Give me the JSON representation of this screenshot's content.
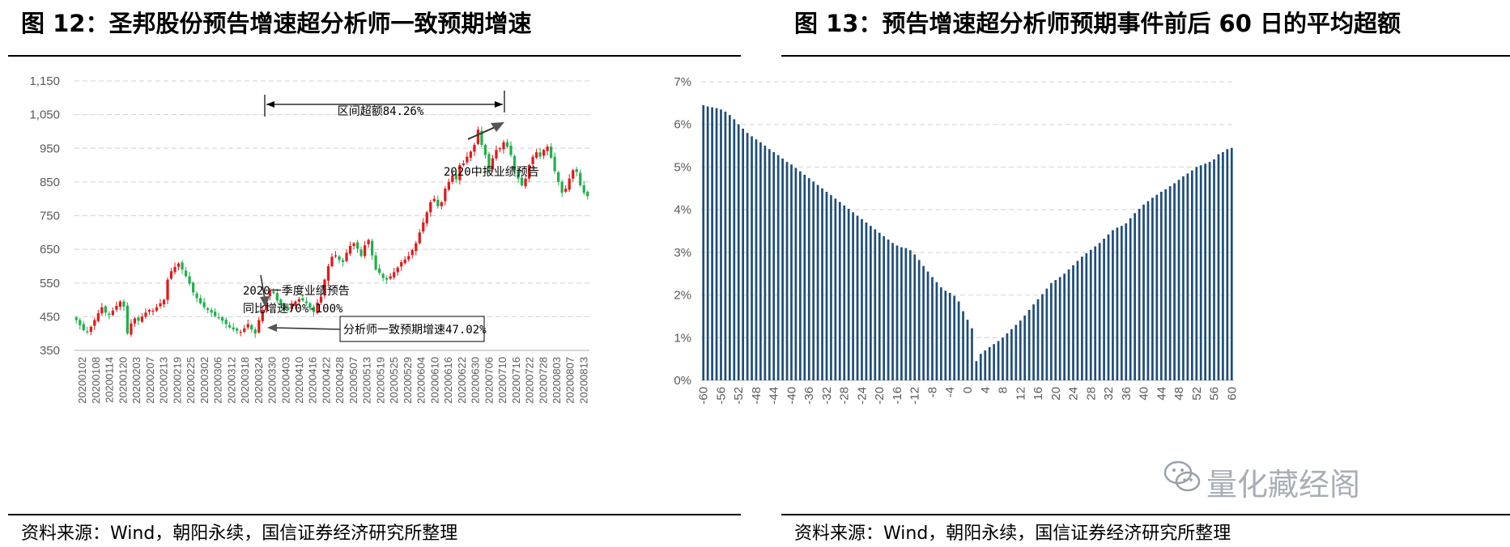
{
  "left": {
    "title": "图 12：圣邦股份预告增速超分析师一致预期增速",
    "source": "资料来源：Wind，朝阳永续，国信证券经济研究所整理"
  },
  "right": {
    "title": "图 13：预告增速超分析师预期事件前后 60 日的平均超额",
    "source": "资料来源：Wind，朝阳永续，国信证券经济研究所整理"
  },
  "watermark": "量化藏经阁",
  "colors": {
    "up": "#e3191b",
    "down": "#1fb14c",
    "bar": "#1f4e79",
    "grid": "#d9d9d9"
  },
  "chart_data": [
    {
      "type": "candlestick",
      "title": "圣邦股份预告增速超分析师一致预期增速",
      "ylim": [
        350,
        1150
      ],
      "yticks": [
        "1,150",
        "1,050",
        "950",
        "850",
        "750",
        "650",
        "550",
        "450",
        "350"
      ],
      "ytick_values": [
        1150,
        1050,
        950,
        850,
        750,
        650,
        550,
        450,
        350
      ],
      "xticks": [
        "20200102",
        "20200108",
        "20200114",
        "20200120",
        "20200203",
        "20200207",
        "20200213",
        "20200219",
        "20200225",
        "20200302",
        "20200306",
        "20200312",
        "20200318",
        "20200324",
        "20200330",
        "20200403",
        "20200410",
        "20200416",
        "20200422",
        "20200428",
        "20200507",
        "20200513",
        "20200519",
        "20200525",
        "20200529",
        "20200604",
        "20200610",
        "20200616",
        "20200622",
        "20200630",
        "20200706",
        "20200710",
        "20200716",
        "20200722",
        "20200728",
        "20200803",
        "20200807",
        "20200813"
      ],
      "close": [
        440,
        425,
        410,
        405,
        420,
        440,
        460,
        478,
        462,
        455,
        468,
        482,
        495,
        480,
        400,
        430,
        445,
        438,
        450,
        462,
        470,
        468,
        478,
        490,
        500,
        560,
        585,
        598,
        608,
        590,
        570,
        548,
        522,
        505,
        490,
        478,
        470,
        462,
        452,
        448,
        438,
        428,
        418,
        412,
        408,
        405,
        415,
        428,
        412,
        400,
        440,
        470,
        508,
        528,
        520,
        498,
        485,
        478,
        470,
        485,
        495,
        502,
        498,
        490,
        476,
        464,
        492,
        510,
        560,
        600,
        628,
        632,
        618,
        612,
        640,
        660,
        668,
        652,
        630,
        662,
        678,
        632,
        590,
        580,
        565,
        560,
        570,
        582,
        596,
        612,
        620,
        630,
        648,
        668,
        700,
        730,
        760,
        790,
        800,
        778,
        790,
        830,
        850,
        870,
        858,
        900,
        905,
        925,
        940,
        960,
        1005,
        960,
        930,
        890,
        920,
        945,
        950,
        968,
        955,
        930,
        885,
        860,
        840,
        860,
        900,
        925,
        938,
        925,
        945,
        955,
        922,
        882,
        850,
        818,
        830,
        860,
        885,
        880,
        840,
        818,
        808
      ],
      "annotations": [
        "区间超额84.26%",
        "2020中报业绩预告",
        "2020一季度业绩预告",
        "同比增速70%-100%",
        "分析师一致预期增速47.02%"
      ]
    },
    {
      "type": "bar",
      "title": "预告增速超分析师预期事件前后 60 日的平均超额",
      "ylim": [
        0,
        7
      ],
      "yticks": [
        "7%",
        "6%",
        "5%",
        "4%",
        "3%",
        "2%",
        "1%",
        "0%"
      ],
      "ytick_values": [
        7,
        6,
        5,
        4,
        3,
        2,
        1,
        0
      ],
      "xtick_labels": [
        "-60",
        "-56",
        "-52",
        "-48",
        "-44",
        "-40",
        "-36",
        "-32",
        "-28",
        "-24",
        "-20",
        "-16",
        "-12",
        "-8",
        "-4",
        "0",
        "4",
        "8",
        "12",
        "16",
        "20",
        "24",
        "28",
        "32",
        "36",
        "40",
        "44",
        "48",
        "52",
        "56",
        "60"
      ],
      "x": [
        -60,
        -59,
        -58,
        -57,
        -56,
        -55,
        -54,
        -53,
        -52,
        -51,
        -50,
        -49,
        -48,
        -47,
        -46,
        -45,
        -44,
        -43,
        -42,
        -41,
        -40,
        -39,
        -38,
        -37,
        -36,
        -35,
        -34,
        -33,
        -32,
        -31,
        -30,
        -29,
        -28,
        -27,
        -26,
        -25,
        -24,
        -23,
        -22,
        -21,
        -20,
        -19,
        -18,
        -17,
        -16,
        -15,
        -14,
        -13,
        -12,
        -11,
        -10,
        -9,
        -8,
        -7,
        -6,
        -5,
        -4,
        -3,
        -2,
        -1,
        0,
        1,
        2,
        3,
        4,
        5,
        6,
        7,
        8,
        9,
        10,
        11,
        12,
        13,
        14,
        15,
        16,
        17,
        18,
        19,
        20,
        21,
        22,
        23,
        24,
        25,
        26,
        27,
        28,
        29,
        30,
        31,
        32,
        33,
        34,
        35,
        36,
        37,
        38,
        39,
        40,
        41,
        42,
        43,
        44,
        45,
        46,
        47,
        48,
        49,
        50,
        51,
        52,
        53,
        54,
        55,
        56,
        57,
        58,
        59,
        60
      ],
      "values": [
        6.45,
        6.42,
        6.4,
        6.38,
        6.35,
        6.3,
        6.22,
        6.12,
        6.0,
        5.9,
        5.8,
        5.72,
        5.65,
        5.58,
        5.5,
        5.42,
        5.35,
        5.28,
        5.2,
        5.12,
        5.06,
        4.98,
        4.9,
        4.82,
        4.74,
        4.66,
        4.58,
        4.5,
        4.42,
        4.34,
        4.26,
        4.18,
        4.1,
        4.02,
        3.94,
        3.86,
        3.78,
        3.7,
        3.62,
        3.54,
        3.46,
        3.38,
        3.3,
        3.22,
        3.16,
        3.12,
        3.1,
        3.05,
        2.95,
        2.82,
        2.68,
        2.55,
        2.42,
        2.3,
        2.18,
        2.1,
        2.05,
        1.98,
        1.85,
        1.62,
        1.42,
        1.22,
        0.45,
        0.62,
        0.7,
        0.78,
        0.85,
        0.92,
        1.0,
        1.1,
        1.2,
        1.3,
        1.4,
        1.52,
        1.65,
        1.78,
        1.9,
        2.02,
        2.15,
        2.28,
        2.35,
        2.42,
        2.5,
        2.6,
        2.7,
        2.8,
        2.9,
        2.98,
        3.06,
        3.14,
        3.22,
        3.32,
        3.42,
        3.52,
        3.58,
        3.62,
        3.68,
        3.8,
        3.92,
        4.02,
        4.12,
        4.2,
        4.28,
        4.35,
        4.42,
        4.48,
        4.55,
        4.62,
        4.7,
        4.78,
        4.85,
        4.92,
        5.0,
        5.04,
        5.08,
        5.12,
        5.18,
        5.3,
        5.35,
        5.42,
        5.45
      ]
    }
  ]
}
